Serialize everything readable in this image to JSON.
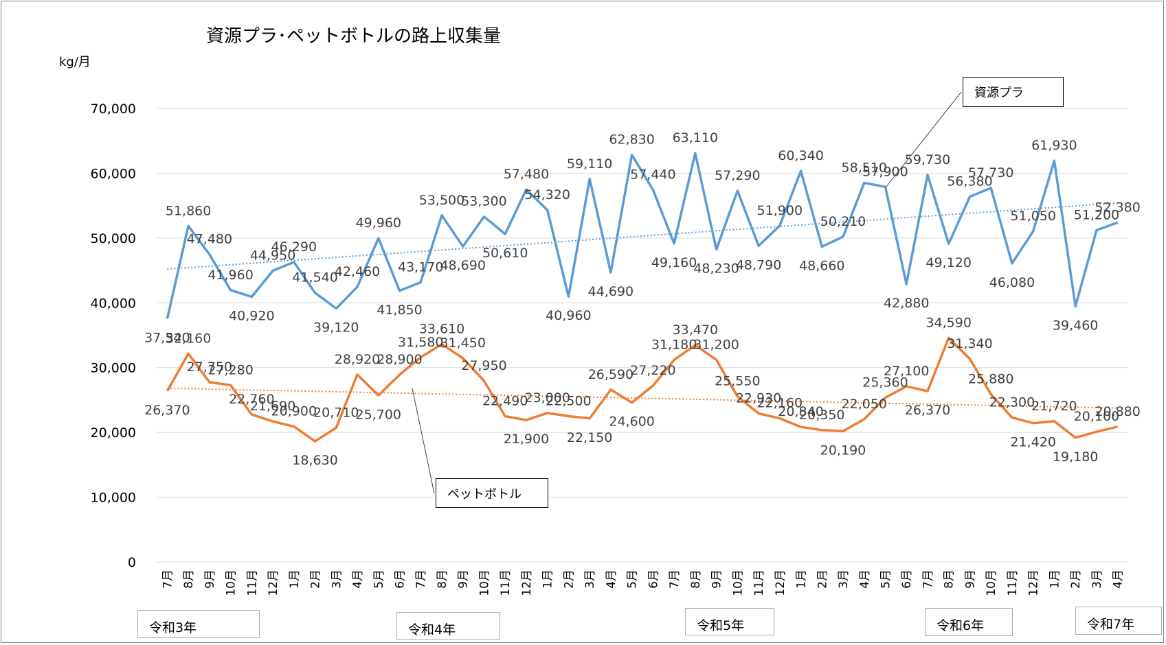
{
  "chart_data": {
    "type": "line",
    "title": "資源プラ･ペットボトルの路上収集量",
    "ylabel": "kg/月",
    "xlabel": "",
    "ylim": [
      0,
      70000
    ],
    "yticks": [
      "0",
      "10,000",
      "20,000",
      "30,000",
      "40,000",
      "50,000",
      "60,000",
      "70,000"
    ],
    "grid": true,
    "legend": "callouts",
    "categories": [
      "7月",
      "8月",
      "9月",
      "10月",
      "11月",
      "12月",
      "1月",
      "2月",
      "3月",
      "4月",
      "5月",
      "6月",
      "7月",
      "8月",
      "9月",
      "10月",
      "11月",
      "12月",
      "1月",
      "2月",
      "3月",
      "4月",
      "5月",
      "6月",
      "7月",
      "8月",
      "9月",
      "10月",
      "11月",
      "12月",
      "1月",
      "2月",
      "3月",
      "4月",
      "5月",
      "6月",
      "7月",
      "8月",
      "9月",
      "10月",
      "11月",
      "12月",
      "1月",
      "2月",
      "3月",
      "4月"
    ],
    "series": [
      {
        "name": "資源プラ",
        "color": "#5b9bd5",
        "trendline": true,
        "values": [
          37540,
          51860,
          47480,
          41960,
          40920,
          44950,
          46290,
          41540,
          39120,
          42460,
          49960,
          41850,
          43170,
          53500,
          48690,
          53300,
          50610,
          57480,
          54320,
          40960,
          59110,
          44690,
          62830,
          57440,
          49160,
          63110,
          48230,
          57290,
          48790,
          51900,
          60340,
          48660,
          50210,
          58510,
          57900,
          42880,
          59730,
          49120,
          56380,
          57730,
          46080,
          51050,
          61930,
          39460,
          51200,
          52380
        ],
        "labels": [
          "37,540",
          "51,860",
          "47,480",
          "41,960",
          "40,920",
          "44,950",
          "46,290",
          "41,540",
          "39,120",
          "42,460",
          "49,960",
          "41,850",
          "43,170",
          "53,500",
          "48,690",
          "53,300",
          "50,610",
          "57,480",
          "54,320",
          "40,960",
          "59,110",
          "44,690",
          "62,830",
          "57,440",
          "49,160",
          "63,110",
          "48,230",
          "57,290",
          "48,790",
          "51,900",
          "60,340",
          "48,660",
          "50,210",
          "58,510",
          "57,900",
          "42,880",
          "59,730",
          "49,120",
          "56,380",
          "57,730",
          "46,080",
          "51,050",
          "61,930",
          "39,460",
          "51,200",
          "52,380"
        ]
      },
      {
        "name": "ペットボトル",
        "color": "#ed7d31",
        "trendline": true,
        "values": [
          26370,
          32160,
          27750,
          27280,
          22760,
          21690,
          20900,
          18630,
          20710,
          28920,
          25700,
          28900,
          31580,
          33610,
          31450,
          27950,
          22490,
          21900,
          23000,
          22500,
          22150,
          26590,
          24600,
          27220,
          31180,
          33470,
          31200,
          25550,
          22930,
          22160,
          20840,
          20350,
          20190,
          22050,
          25360,
          27100,
          26370,
          34590,
          31340,
          25880,
          22300,
          21420,
          21720,
          19180,
          20100,
          20880
        ],
        "labels": [
          "26,370",
          "32,160",
          "27,750",
          "27,280",
          "22,760",
          "21,690",
          "20,900",
          "18,630",
          "20,710",
          "28,920",
          "25,700",
          "28,900",
          "31,580",
          "33,610",
          "31,450",
          "27,950",
          "22,490",
          "21,900",
          "23,000",
          "22,500",
          "22,150",
          "26,590",
          "24,600",
          "27,220",
          "31,180",
          "33,470",
          "31,200",
          "25,550",
          "22,930",
          "22,160",
          "20,840",
          "20,350",
          "20,190",
          "22,050",
          "25,360",
          "27,100",
          "26,370",
          "34,590",
          "31,340",
          "25,880",
          "22,300",
          "21,420",
          "21,720",
          "19,180",
          "20,100",
          "20,880"
        ]
      }
    ],
    "era_labels": [
      "令和3年",
      "令和4年",
      "令和5年",
      "令和6年",
      "令和7年"
    ]
  },
  "callouts": {
    "plastic": "資源プラ",
    "pet": "ペットボトル"
  }
}
